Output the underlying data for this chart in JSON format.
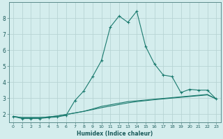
{
  "xlabel": "Humidex (Indice chaleur)",
  "x_values": [
    0,
    1,
    2,
    3,
    4,
    5,
    6,
    7,
    8,
    9,
    10,
    11,
    12,
    13,
    14,
    15,
    16,
    17,
    18,
    19,
    20,
    21,
    22,
    23
  ],
  "line1_y": [
    1.85,
    1.72,
    1.72,
    1.72,
    1.78,
    1.82,
    1.92,
    2.85,
    3.45,
    4.35,
    5.35,
    7.45,
    8.15,
    7.75,
    8.45,
    6.25,
    5.15,
    4.45,
    4.35,
    3.35,
    3.55,
    3.5,
    3.5,
    2.95
  ],
  "line2_y": [
    1.85,
    1.78,
    1.78,
    1.78,
    1.82,
    1.88,
    1.97,
    2.07,
    2.17,
    2.28,
    2.4,
    2.5,
    2.6,
    2.7,
    2.78,
    2.84,
    2.9,
    2.95,
    3.0,
    3.05,
    3.1,
    3.15,
    3.2,
    2.95
  ],
  "line3_y": [
    1.85,
    1.78,
    1.78,
    1.78,
    1.82,
    1.88,
    1.97,
    2.07,
    2.17,
    2.32,
    2.48,
    2.58,
    2.68,
    2.78,
    2.83,
    2.88,
    2.93,
    2.98,
    3.03,
    3.08,
    3.13,
    3.18,
    3.23,
    2.95
  ],
  "line_color": "#1a7a6e",
  "bg_color": "#d4eded",
  "grid_color": "#b8d4d4",
  "ylim": [
    1.5,
    9.0
  ],
  "xlim": [
    -0.5,
    23.5
  ],
  "yticks": [
    2,
    3,
    4,
    5,
    6,
    7,
    8
  ],
  "xticks": [
    0,
    1,
    2,
    3,
    4,
    5,
    6,
    7,
    8,
    9,
    10,
    11,
    12,
    13,
    14,
    15,
    16,
    17,
    18,
    19,
    20,
    21,
    22,
    23
  ],
  "marker": "+"
}
